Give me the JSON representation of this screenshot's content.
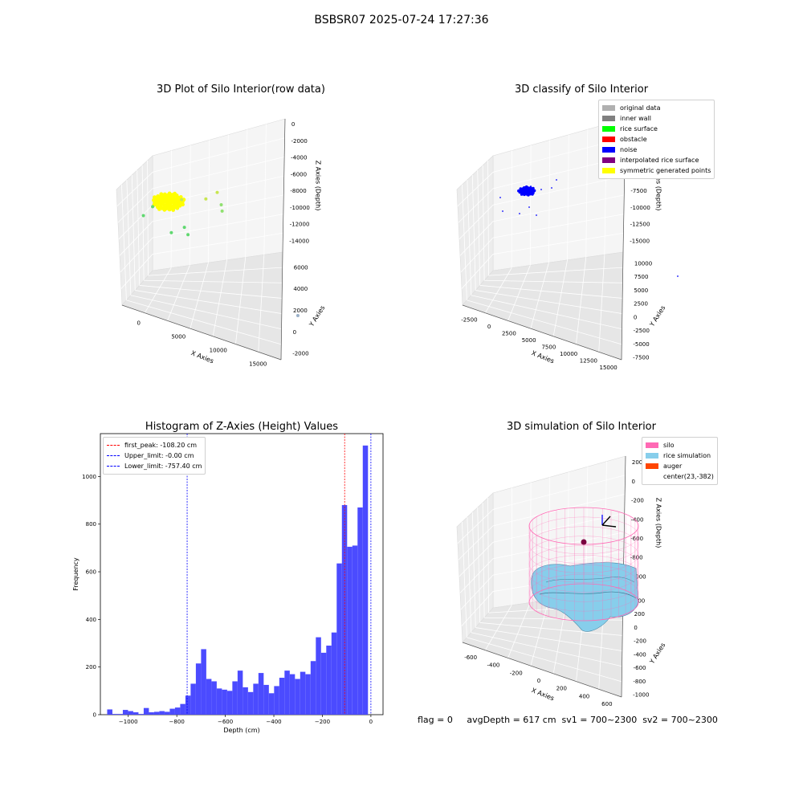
{
  "suptitle": "BSBSR07 2025-07-24 17:27:36",
  "footer": "flag = 0     avgDepth = 617 cm  sv1 = 700~2300  sv2 = 700~2300",
  "colors": {
    "rice_surface": "#00ff00",
    "noise": "#0000ff",
    "symmetric": "#ffff00",
    "original": "#b0b0b0",
    "inner_wall": "#808080",
    "obstacle": "#ff0000",
    "interpolated": "#800080",
    "silo": "#ff69b4",
    "rice_sim": "#87ceeb",
    "auger": "#ff4500",
    "hist_bar": "#4b4bff",
    "peak_line": "#ff0000",
    "limit_line": "#0000ff"
  },
  "chart_data": [
    {
      "id": "raw",
      "type": "scatter",
      "title": "3D Plot of Silo Interior(row data)",
      "xlabel": "X Axies",
      "ylabel": "Y Axies",
      "zlabel": "Z Axies (Depth)",
      "x_ticks": [
        "0",
        "5000",
        "10000",
        "15000"
      ],
      "y_ticks": [
        "-2000",
        "0",
        "2000",
        "4000",
        "6000"
      ],
      "z_ticks": [
        "0",
        "-2000",
        "-4000",
        "-6000",
        "-8000",
        "-10000",
        "-12000",
        "-14000"
      ],
      "cluster": {
        "x": 500,
        "y": 3000,
        "z": -2000,
        "color": "yellow"
      },
      "points": [
        {
          "x": 2300,
          "y": 3200,
          "z": -1200,
          "c": "#c8e650"
        },
        {
          "x": 5300,
          "y": 4100,
          "z": -500,
          "c": "#c8e650"
        },
        {
          "x": 6400,
          "y": 5300,
          "z": 200,
          "c": "#c8e650"
        },
        {
          "x": 7200,
          "y": 4600,
          "z": -900,
          "c": "#90e070"
        },
        {
          "x": 7600,
          "y": 3900,
          "z": -1300,
          "c": "#90e070"
        },
        {
          "x": -1200,
          "y": 1800,
          "z": -2700,
          "c": "#60d870"
        },
        {
          "x": 3400,
          "y": 1200,
          "z": -3700,
          "c": "#60d870"
        },
        {
          "x": -2200,
          "y": 1000,
          "z": -3900,
          "c": "#60d870"
        },
        {
          "x": 1800,
          "y": 600,
          "z": -4700,
          "c": "#60d870"
        },
        {
          "x": 3900,
          "y": 1100,
          "z": -4500,
          "c": "#60d870"
        },
        {
          "x": 16500,
          "y": 6200,
          "z": -13800,
          "c": "#9ab0c8"
        }
      ]
    },
    {
      "id": "classify",
      "type": "scatter",
      "title": "3D classify of Silo Interior",
      "xlabel": "X Axies",
      "ylabel": "Y Axies",
      "zlabel": "Z Axies (Depth)",
      "x_ticks": [
        "-2500",
        "0",
        "2500",
        "5000",
        "7500",
        "10000",
        "12500",
        "15000"
      ],
      "y_ticks": [
        "-7500",
        "-5000",
        "-2500",
        "0",
        "2500",
        "5000",
        "7500",
        "10000"
      ],
      "z_ticks": [
        "2500",
        "0",
        "-2500",
        "-5000",
        "-7500",
        "-10000",
        "-12500",
        "-15000"
      ],
      "legend": [
        {
          "label": "original data",
          "color": "#b0b0b0"
        },
        {
          "label": "inner wall",
          "color": "#808080"
        },
        {
          "label": "rice surface",
          "color": "#00ff00"
        },
        {
          "label": "obstacle",
          "color": "#ff0000"
        },
        {
          "label": "noise",
          "color": "#0000ff"
        },
        {
          "label": "interpolated rice surface",
          "color": "#800080"
        },
        {
          "label": "symmetric generated points",
          "color": "#ffff00"
        }
      ]
    },
    {
      "id": "histogram",
      "type": "bar",
      "title": "Histogram of Z-Axies (Height) Values",
      "xlabel": "Depth (cm)",
      "ylabel": "Frequency",
      "xlim": [
        -1115,
        50
      ],
      "ylim": [
        0,
        1180
      ],
      "x_ticks": [
        -1000,
        -800,
        -600,
        -400,
        -200,
        0
      ],
      "x_tick_labels": [
        "−1000",
        "−800",
        "−600",
        "−400",
        "−200",
        "0"
      ],
      "y_ticks": [
        0,
        200,
        400,
        600,
        800,
        1000
      ],
      "bin_start": -1087,
      "bin_width": 21.5,
      "values": [
        22,
        3,
        3,
        20,
        15,
        10,
        3,
        28,
        10,
        12,
        15,
        12,
        25,
        30,
        45,
        80,
        130,
        215,
        275,
        150,
        140,
        110,
        105,
        100,
        140,
        185,
        115,
        95,
        130,
        175,
        125,
        90,
        120,
        155,
        185,
        170,
        150,
        180,
        170,
        225,
        325,
        260,
        290,
        345,
        635,
        880,
        705,
        710,
        870,
        1130
      ],
      "lines": [
        {
          "label": "first_peak: -108.20 cm",
          "value": -108.2,
          "color": "#ff0000"
        },
        {
          "label": "Upper_limit: -0.00 cm",
          "value": 0,
          "color": "#0000ff"
        },
        {
          "label": "Lower_limit: -757.40 cm",
          "value": -757.4,
          "color": "#0000ff"
        }
      ]
    },
    {
      "id": "simulation",
      "type": "scatter",
      "title": "3D simulation of Silo Interior",
      "xlabel": "X Axies",
      "ylabel": "Y Axies",
      "zlabel": "Z Axies (Depth)",
      "x_ticks": [
        "-600",
        "-400",
        "-200",
        "0",
        "200",
        "400",
        "600"
      ],
      "y_ticks": [
        "-1000",
        "-800",
        "-600",
        "-400",
        "-200",
        "0",
        "200",
        "400"
      ],
      "z_ticks": [
        "200",
        "0",
        "-200",
        "-400",
        "-600",
        "-800",
        "-1000"
      ],
      "legend": [
        {
          "label": "silo",
          "color": "#ff69b4"
        },
        {
          "label": "rice simulation",
          "color": "#87ceeb"
        },
        {
          "label": "auger",
          "color": "#ff4500"
        },
        {
          "label": "center(23,-382)",
          "color": ""
        }
      ],
      "center": {
        "x": 23,
        "y": -382
      }
    }
  ]
}
